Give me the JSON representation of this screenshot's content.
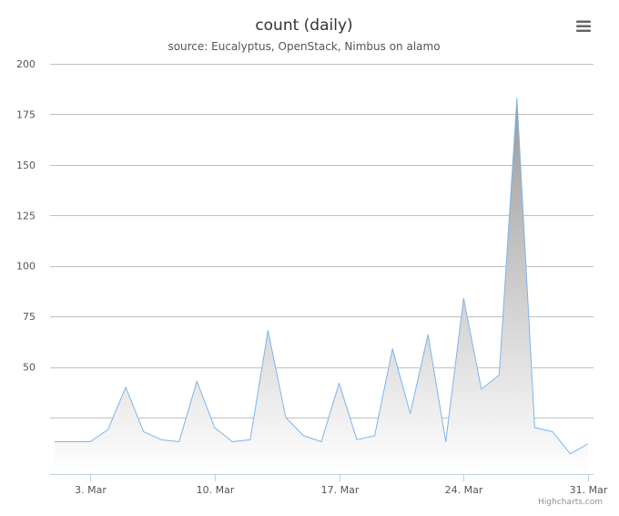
{
  "chart_data": {
    "type": "area",
    "title": "count (daily)",
    "subtitle": "source: Eucalyptus, OpenStack, Nimbus on alamo",
    "xlabel": "",
    "ylabel": "",
    "x": [
      "2015-03-01",
      "2015-03-02",
      "2015-03-03",
      "2015-03-04",
      "2015-03-05",
      "2015-03-06",
      "2015-03-07",
      "2015-03-08",
      "2015-03-09",
      "2015-03-10",
      "2015-03-11",
      "2015-03-12",
      "2015-03-13",
      "2015-03-14",
      "2015-03-15",
      "2015-03-16",
      "2015-03-17",
      "2015-03-18",
      "2015-03-19",
      "2015-03-20",
      "2015-03-21",
      "2015-03-22",
      "2015-03-23",
      "2015-03-24",
      "2015-03-25",
      "2015-03-26",
      "2015-03-27",
      "2015-03-28",
      "2015-03-29",
      "2015-03-30",
      "2015-03-31"
    ],
    "values": [
      13,
      13,
      13,
      19,
      40,
      18,
      14,
      13,
      43,
      20,
      13,
      14,
      68,
      25,
      16,
      13,
      42,
      14,
      16,
      59,
      27,
      66,
      13,
      84,
      39,
      46,
      183,
      20,
      18,
      7,
      12
    ],
    "ylim": [
      -3,
      200
    ],
    "y_ticks": [
      50,
      75,
      100,
      125,
      150,
      175,
      200
    ],
    "x_tick_values": [
      "2015-03-03",
      "2015-03-10",
      "2015-03-17",
      "2015-03-24",
      "2015-03-31"
    ],
    "x_tick_labels": [
      "3. Mar",
      "10. Mar",
      "17. Mar",
      "24. Mar",
      "31. Mar"
    ],
    "grid": true,
    "legend": "none",
    "colors": {
      "line": "#7cb5ec",
      "fill_top": "#9a9a9a",
      "fill_bottom": "#ffffff",
      "grid": "#c0c0c0",
      "axis": "#c0d0e0"
    }
  },
  "menu_icon": "hamburger-menu-icon",
  "credits": "Highcharts.com"
}
